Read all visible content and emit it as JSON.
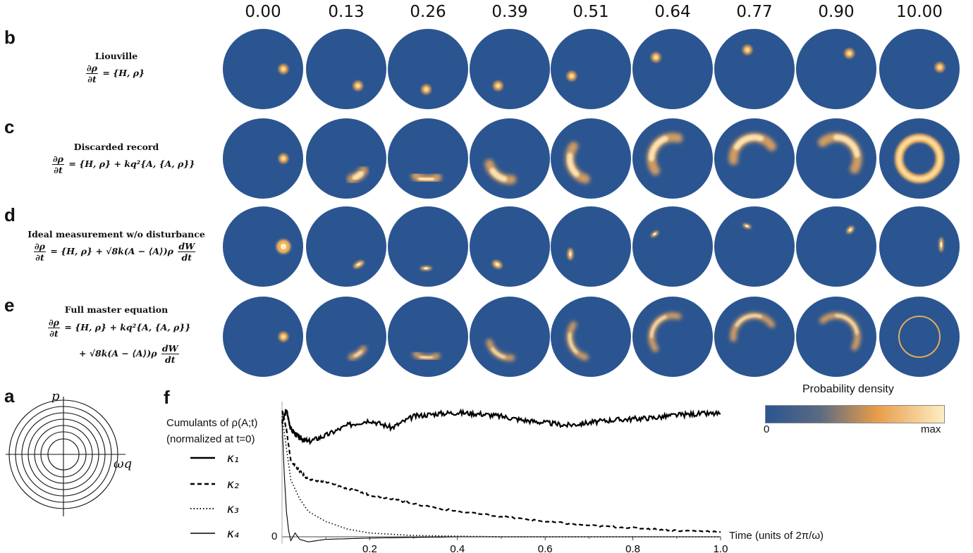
{
  "times": [
    "0.00",
    "0.13",
    "0.26",
    "0.39",
    "0.51",
    "0.64",
    "0.77",
    "0.90",
    "10.00"
  ],
  "rows": [
    {
      "letter": "b",
      "title": "Liouville",
      "eq1": "∂ρ",
      "eq1den": "∂t",
      "rhs1": "= {H, ρ}",
      "rhs2": "",
      "rhs2b": ""
    },
    {
      "letter": "c",
      "title": "Discarded record",
      "eq1": "∂ρ",
      "eq1den": "∂t",
      "rhs1": "= {H, ρ} + kq²{A, {A, ρ}}",
      "rhs2": "",
      "rhs2b": ""
    },
    {
      "letter": "d",
      "title": "Ideal measurement w/o disturbance",
      "eq1": "∂ρ",
      "eq1den": "∂t",
      "rhs1": "= {H, ρ} + √8k(A − ⟨A⟩)ρ",
      "rhs2": "dW",
      "rhs2b": "dt"
    },
    {
      "letter": "e",
      "title": "Full master equation",
      "eq1": "∂ρ",
      "eq1den": "∂t",
      "rhs1": "= {H, ρ} + kq²{A, {A, ρ}}",
      "rhs2": "+ √8k(A − ⟨A⟩)ρ",
      "rhs2b": "dW",
      "rhs2c": "dt"
    }
  ],
  "panel_a": {
    "letter": "a",
    "p_label": "p",
    "q_label": "ωq"
  },
  "panel_f": {
    "letter": "f",
    "legend_title1": "Cumulants of ρ(A;t)",
    "legend_title2": "(normalized at t=0)",
    "legend": [
      "κ₁",
      "κ₂",
      "κ₃",
      "κ₄"
    ],
    "x_label": "Time (units of 2π/ω)",
    "y_zero": "0"
  },
  "colorbar": {
    "title": "Probability density",
    "min": "0",
    "max": "max",
    "colors": [
      "#2b5590",
      "#e79c48",
      "#fdeec4"
    ]
  },
  "chart_data": {
    "type": "line",
    "xlabel": "Time (units of 2π/ω)",
    "xlim": [
      0,
      1.0
    ],
    "xticks": [
      "0.2",
      "0.4",
      "0.6",
      "0.8",
      "1.0"
    ],
    "yticks": [
      "0"
    ],
    "series": [
      {
        "name": "κ1",
        "x": [
          0,
          0.01,
          0.02,
          0.04,
          0.06,
          0.1,
          0.15,
          0.2,
          0.25,
          0.3,
          0.35,
          0.4,
          0.45,
          0.5,
          0.55,
          0.6,
          0.65,
          0.7,
          0.75,
          0.8,
          0.85,
          0.9,
          0.95,
          1.0
        ],
        "y": [
          0.9,
          1.0,
          0.85,
          0.78,
          0.75,
          0.8,
          0.88,
          0.92,
          0.86,
          0.95,
          0.97,
          0.98,
          0.97,
          0.95,
          0.92,
          0.9,
          0.88,
          0.9,
          0.92,
          0.93,
          0.94,
          0.96,
          0.97,
          0.97
        ]
      },
      {
        "name": "κ2",
        "x": [
          0,
          0.01,
          0.02,
          0.04,
          0.06,
          0.1,
          0.15,
          0.2,
          0.25,
          0.3,
          0.4,
          0.5,
          0.6,
          0.7,
          0.8,
          0.9,
          1.0
        ],
        "y": [
          1.0,
          0.85,
          0.6,
          0.52,
          0.45,
          0.43,
          0.38,
          0.33,
          0.3,
          0.26,
          0.2,
          0.16,
          0.12,
          0.09,
          0.07,
          0.05,
          0.04
        ]
      },
      {
        "name": "κ3",
        "x": [
          0,
          0.01,
          0.02,
          0.04,
          0.06,
          0.1,
          0.15,
          0.2,
          0.3,
          0.4,
          0.5,
          1.0
        ],
        "y": [
          0.95,
          0.7,
          0.45,
          0.3,
          0.2,
          0.12,
          0.06,
          0.03,
          0.01,
          0.005,
          0.0,
          0.0
        ]
      },
      {
        "name": "κ4",
        "x": [
          0,
          0.005,
          0.01,
          0.015,
          0.02,
          0.03,
          0.04,
          0.06,
          0.1,
          0.2,
          0.4,
          1.0
        ],
        "y": [
          0.92,
          0.5,
          0.2,
          0.05,
          -0.03,
          0.03,
          -0.02,
          -0.04,
          -0.02,
          -0.01,
          0.0,
          0.0
        ]
      }
    ]
  }
}
